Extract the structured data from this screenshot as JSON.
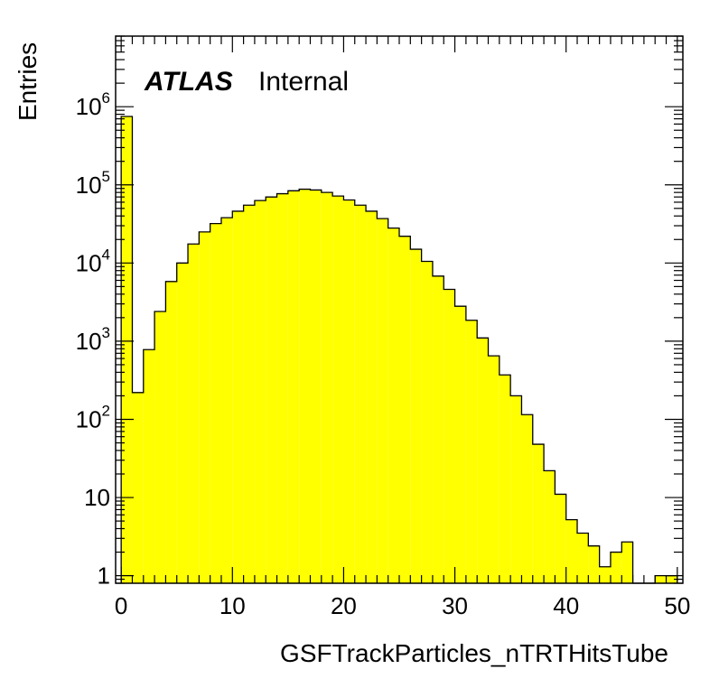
{
  "chart_data": {
    "type": "bar",
    "experiment_label": "ATLAS",
    "status_label": "Internal",
    "xlabel": "GSFTrackParticles_nTRTHitsTube",
    "ylabel": "Entries",
    "log_y": true,
    "xlim": [
      -0.5,
      50.5
    ],
    "ylim": [
      0.8,
      8000000
    ],
    "x_ticks": [
      0,
      10,
      20,
      30,
      40,
      50
    ],
    "y_ticks": [
      {
        "value": 1,
        "base": "1",
        "exp": ""
      },
      {
        "value": 10,
        "base": "10",
        "exp": ""
      },
      {
        "value": 100,
        "base": "10",
        "exp": "2"
      },
      {
        "value": 1000,
        "base": "10",
        "exp": "3"
      },
      {
        "value": 10000,
        "base": "10",
        "exp": "4"
      },
      {
        "value": 100000,
        "base": "10",
        "exp": "5"
      },
      {
        "value": 1000000,
        "base": "10",
        "exp": "6"
      }
    ],
    "bin_low_edges": [
      0,
      1,
      2,
      3,
      4,
      5,
      6,
      7,
      8,
      9,
      10,
      11,
      12,
      13,
      14,
      15,
      16,
      17,
      18,
      19,
      20,
      21,
      22,
      23,
      24,
      25,
      26,
      27,
      28,
      29,
      30,
      31,
      32,
      33,
      34,
      35,
      36,
      37,
      38,
      39,
      40,
      41,
      42,
      43,
      44,
      45,
      46,
      47,
      48,
      49
    ],
    "bin_width": 1,
    "values": [
      750000,
      220,
      780,
      2400,
      5800,
      10000,
      17500,
      25000,
      32000,
      38000,
      46000,
      55000,
      63000,
      70000,
      77000,
      84000,
      88000,
      86000,
      80000,
      72000,
      64000,
      55000,
      46000,
      37000,
      28000,
      22000,
      15000,
      10500,
      6800,
      4600,
      2800,
      1850,
      1100,
      650,
      370,
      200,
      115,
      48,
      22,
      11,
      5.2,
      3.5,
      2.4,
      1.3,
      2,
      2.7,
      0,
      0,
      1,
      1
    ],
    "fill_color": "#ffff00",
    "line_color": "#000000",
    "grid": false
  }
}
